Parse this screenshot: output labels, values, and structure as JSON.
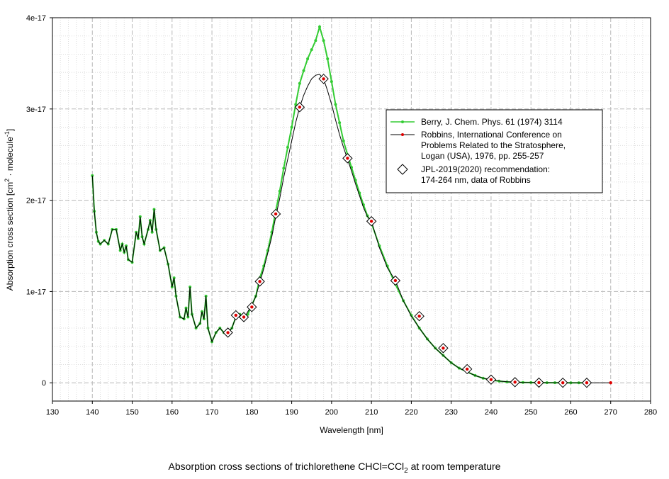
{
  "caption": {
    "before": "Absorption cross sections of trichlorethene CHCl=CCl",
    "sub": "2",
    "after": " at room temperature"
  },
  "chart_data": {
    "type": "line",
    "title": "",
    "xlabel": "Wavelength [nm]",
    "ylabel_main": "Absorption cross section [cm",
    "ylabel_sup1": "2",
    "ylabel_mid": " · molecule",
    "ylabel_sup2": "-1",
    "ylabel_end": "]",
    "xlim": [
      130,
      280
    ],
    "ylim": [
      -2e-18,
      4e-17
    ],
    "x_ticks": [
      130,
      140,
      150,
      160,
      170,
      180,
      190,
      200,
      210,
      220,
      230,
      240,
      250,
      260,
      270,
      280
    ],
    "x_tick_labels": [
      "130",
      "140",
      "150",
      "160",
      "170",
      "180",
      "190",
      "200",
      "210",
      "220",
      "230",
      "240",
      "250",
      "260",
      "270",
      "280"
    ],
    "y_ticks": [
      0,
      1e-17,
      2e-17,
      3e-17,
      4e-17
    ],
    "y_tick_labels": [
      "0",
      "1e-17",
      "2e-17",
      "3e-17",
      "4e-17"
    ],
    "grid": true,
    "legend_position": "right",
    "colors": {
      "berry": "#33cc33",
      "robbins": "#000000",
      "robbins_marker": "#dd0000",
      "jpl": "#000000"
    },
    "series": [
      {
        "name": "Berry, J. Chem. Phys. 61 (1974) 3114",
        "style": "line-with-dots",
        "x": [
          140,
          140.5,
          141,
          141.5,
          142,
          143,
          144,
          145,
          146,
          147,
          147.5,
          148,
          148.5,
          149,
          150,
          151,
          151.5,
          152,
          152.5,
          153,
          154,
          154.5,
          155,
          155.5,
          156,
          157,
          158,
          159,
          160,
          160.5,
          161,
          162,
          163,
          163.5,
          164,
          164.5,
          165,
          166,
          167,
          167.5,
          168,
          168.5,
          169,
          170,
          171,
          172,
          173,
          174,
          175,
          176,
          177,
          178,
          179,
          180,
          181,
          182,
          183,
          184,
          185,
          186,
          187,
          188,
          189,
          190,
          191,
          192,
          193,
          194,
          195,
          196,
          197,
          198,
          199,
          200,
          201,
          202,
          203,
          204,
          205,
          206,
          207,
          208,
          209,
          210,
          212,
          214,
          216,
          218,
          220,
          222,
          224,
          226,
          228,
          230,
          232,
          234,
          236,
          238,
          240,
          242,
          244,
          246,
          248,
          250,
          252,
          254,
          256,
          258,
          260,
          262,
          264
        ],
        "y": [
          2.27e-17,
          1.88e-17,
          1.65e-17,
          1.55e-17,
          1.52e-17,
          1.56e-17,
          1.52e-17,
          1.68e-17,
          1.68e-17,
          1.45e-17,
          1.52e-17,
          1.43e-17,
          1.5e-17,
          1.35e-17,
          1.32e-17,
          1.65e-17,
          1.58e-17,
          1.82e-17,
          1.6e-17,
          1.52e-17,
          1.68e-17,
          1.78e-17,
          1.65e-17,
          1.9e-17,
          1.68e-17,
          1.45e-17,
          1.48e-17,
          1.3e-17,
          1.05e-17,
          1.15e-17,
          9.5e-18,
          7.2e-18,
          7e-18,
          8.2e-18,
          7.2e-18,
          1.05e-17,
          7.5e-18,
          6e-18,
          6.5e-18,
          7.8e-18,
          7e-18,
          9.5e-18,
          6e-18,
          4.5e-18,
          5.5e-18,
          6e-18,
          5.5e-18,
          5.5e-18,
          6e-18,
          7.2e-18,
          7.5e-18,
          7e-18,
          7.5e-18,
          8.5e-18,
          9.5e-18,
          1.15e-17,
          1.28e-17,
          1.45e-17,
          1.65e-17,
          1.88e-17,
          2.1e-17,
          2.35e-17,
          2.58e-17,
          2.8e-17,
          3.05e-17,
          3.28e-17,
          3.42e-17,
          3.55e-17,
          3.65e-17,
          3.75e-17,
          3.9e-17,
          3.75e-17,
          3.55e-17,
          3.3e-17,
          3.05e-17,
          2.85e-17,
          2.65e-17,
          2.5e-17,
          2.36e-17,
          2.22e-17,
          2.08e-17,
          1.95e-17,
          1.83e-17,
          1.75e-17,
          1.5e-17,
          1.28e-17,
          1.08e-17,
          9e-18,
          7.4e-18,
          6e-18,
          4.8e-18,
          3.8e-18,
          3e-18,
          2.2e-18,
          1.6e-18,
          1.2e-18,
          8e-19,
          5e-19,
          3e-19,
          1.8e-19,
          1e-19,
          6e-20,
          4e-20,
          3e-20,
          2e-20,
          1e-20,
          1e-20,
          5e-21,
          3e-21,
          2e-21,
          1e-21
        ]
      },
      {
        "name": "Robbins,  International Conference on Problems Related to the Stratosphere, Logan (USA), 1976, pp. 255-257",
        "style": "line",
        "x": [
          140,
          140.5,
          141,
          141.5,
          142,
          143,
          144,
          145,
          146,
          147,
          147.5,
          148,
          148.5,
          149,
          150,
          151,
          151.5,
          152,
          152.5,
          153,
          154,
          154.5,
          155,
          155.5,
          156,
          157,
          158,
          159,
          160,
          160.5,
          161,
          162,
          163,
          163.5,
          164,
          164.5,
          165,
          166,
          167,
          167.5,
          168,
          168.5,
          169,
          170,
          171,
          172,
          173,
          174,
          175,
          176,
          177,
          178,
          179,
          180,
          181,
          182,
          183,
          184,
          185,
          186,
          187,
          188,
          189,
          190,
          191,
          192,
          193,
          194,
          195,
          196,
          197,
          198,
          199,
          200,
          201,
          202,
          203,
          204,
          205,
          206,
          207,
          208,
          209,
          210,
          212,
          214,
          216,
          218,
          220,
          222,
          224,
          226,
          228,
          230,
          232,
          234,
          236,
          238,
          240,
          242,
          244,
          246,
          248,
          250,
          252,
          254,
          256,
          258,
          260,
          262,
          264,
          266,
          268,
          270
        ],
        "y": [
          2.27e-17,
          1.88e-17,
          1.65e-17,
          1.55e-17,
          1.52e-17,
          1.56e-17,
          1.52e-17,
          1.68e-17,
          1.68e-17,
          1.45e-17,
          1.52e-17,
          1.43e-17,
          1.5e-17,
          1.35e-17,
          1.32e-17,
          1.65e-17,
          1.58e-17,
          1.82e-17,
          1.6e-17,
          1.52e-17,
          1.68e-17,
          1.78e-17,
          1.65e-17,
          1.9e-17,
          1.68e-17,
          1.45e-17,
          1.48e-17,
          1.3e-17,
          1.05e-17,
          1.15e-17,
          9.5e-18,
          7.2e-18,
          7e-18,
          8.2e-18,
          7.2e-18,
          1.05e-17,
          7.5e-18,
          6e-18,
          6.5e-18,
          7.8e-18,
          7e-18,
          9.5e-18,
          6e-18,
          4.5e-18,
          5.5e-18,
          6e-18,
          5.5e-18,
          5.5e-18,
          6e-18,
          7.2e-18,
          7.5e-18,
          7e-18,
          7.8e-18,
          8.5e-18,
          9.5e-18,
          1.1e-17,
          1.25e-17,
          1.42e-17,
          1.6e-17,
          1.82e-17,
          2.02e-17,
          2.25e-17,
          2.45e-17,
          2.65e-17,
          2.85e-17,
          3.02e-17,
          3.15e-17,
          3.25e-17,
          3.33e-17,
          3.37e-17,
          3.38e-17,
          3.33e-17,
          3.2e-17,
          3.05e-17,
          2.88e-17,
          2.72e-17,
          2.58e-17,
          2.45e-17,
          2.32e-17,
          2.18e-17,
          2.05e-17,
          1.92e-17,
          1.82e-17,
          1.77e-17,
          1.48e-17,
          1.26e-17,
          1.12e-17,
          9e-18,
          7.3e-18,
          6e-18,
          4.8e-18,
          3.8e-18,
          3e-18,
          2.2e-18,
          1.6e-18,
          1.2e-18,
          8e-19,
          5e-19,
          3.5e-19,
          2e-19,
          1.2e-19,
          7e-20,
          4e-20,
          3e-20,
          2e-20,
          1e-20,
          1e-20,
          5e-21,
          3e-21,
          2e-21,
          1e-21,
          1e-21,
          5e-22,
          3e-22
        ],
        "marker_x": [
          174,
          176,
          178,
          180,
          182,
          186,
          192,
          198,
          204,
          210,
          216,
          222,
          228,
          234,
          240,
          246,
          252,
          258,
          264,
          270
        ],
        "marker_y": [
          5.5e-18,
          7.4e-18,
          7.2e-18,
          8.3e-18,
          1.11e-17,
          1.85e-17,
          3.02e-17,
          3.33e-17,
          2.46e-17,
          1.77e-17,
          1.12e-17,
          7.3e-18,
          3.8e-18,
          1.5e-18,
          3.5e-19,
          7e-20,
          2e-20,
          5e-21,
          1e-21,
          3e-22
        ]
      },
      {
        "name": "JPL-2019(2020) recommendation: 174-264 nm, data of Robbins",
        "style": "diamond-markers",
        "x": [
          174,
          176,
          178,
          180,
          182,
          186,
          192,
          198,
          204,
          210,
          216,
          222,
          228,
          234,
          240,
          246,
          252,
          258,
          264
        ],
        "y": [
          5.5e-18,
          7.4e-18,
          7.2e-18,
          8.3e-18,
          1.11e-17,
          1.85e-17,
          3.02e-17,
          3.33e-17,
          2.46e-17,
          1.77e-17,
          1.12e-17,
          7.3e-18,
          3.8e-18,
          1.5e-18,
          3.5e-19,
          7e-20,
          2e-20,
          5e-21,
          1e-21
        ]
      }
    ],
    "legend": {
      "entries": [
        {
          "lines": [
            "Berry, J. Chem. Phys. 61 (1974) 3114"
          ]
        },
        {
          "lines": [
            "Robbins,  International Conference on",
            "Problems Related to the Stratosphere,",
            "Logan (USA), 1976, pp. 255-257"
          ]
        },
        {
          "lines": [
            "JPL-2019(2020) recommendation:",
            "174-264 nm, data of Robbins"
          ]
        }
      ]
    }
  }
}
